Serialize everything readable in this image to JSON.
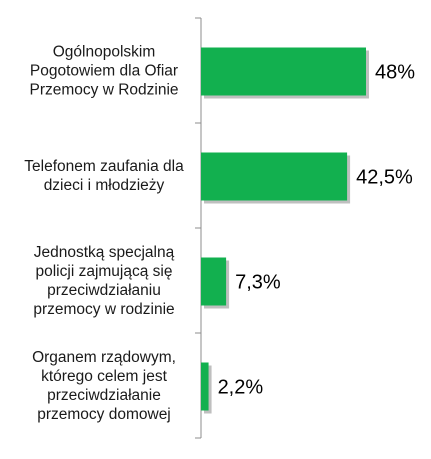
{
  "chart_data": {
    "type": "bar",
    "orientation": "horizontal",
    "categories": [
      [
        "Ogólnopolskim",
        "Pogotowiem dla Ofiar",
        "Przemocy w Rodzinie"
      ],
      [
        "Telefonem zaufania dla",
        "dzieci i młodzieży"
      ],
      [
        "Jednostką specjalną",
        "policji zajmującą się",
        "przeciwdziałaniu",
        "przemocy w rodzinie"
      ],
      [
        "Organem rządowym,",
        "którego celem jest",
        "przeciwdziałanie",
        "przemocy domowej"
      ]
    ],
    "values": [
      48,
      42.5,
      7.3,
      2.2
    ],
    "value_labels": [
      "48%",
      "42,5%",
      "7,3%",
      "2,2%"
    ],
    "title": "",
    "xlabel": "",
    "ylabel": "",
    "xlim": [
      0,
      60
    ],
    "grid": false,
    "legend": "none",
    "colors": {
      "bar": "#12b04f",
      "bar_shadow": "#8a8a8a",
      "axis": "#8c8c8c"
    }
  }
}
